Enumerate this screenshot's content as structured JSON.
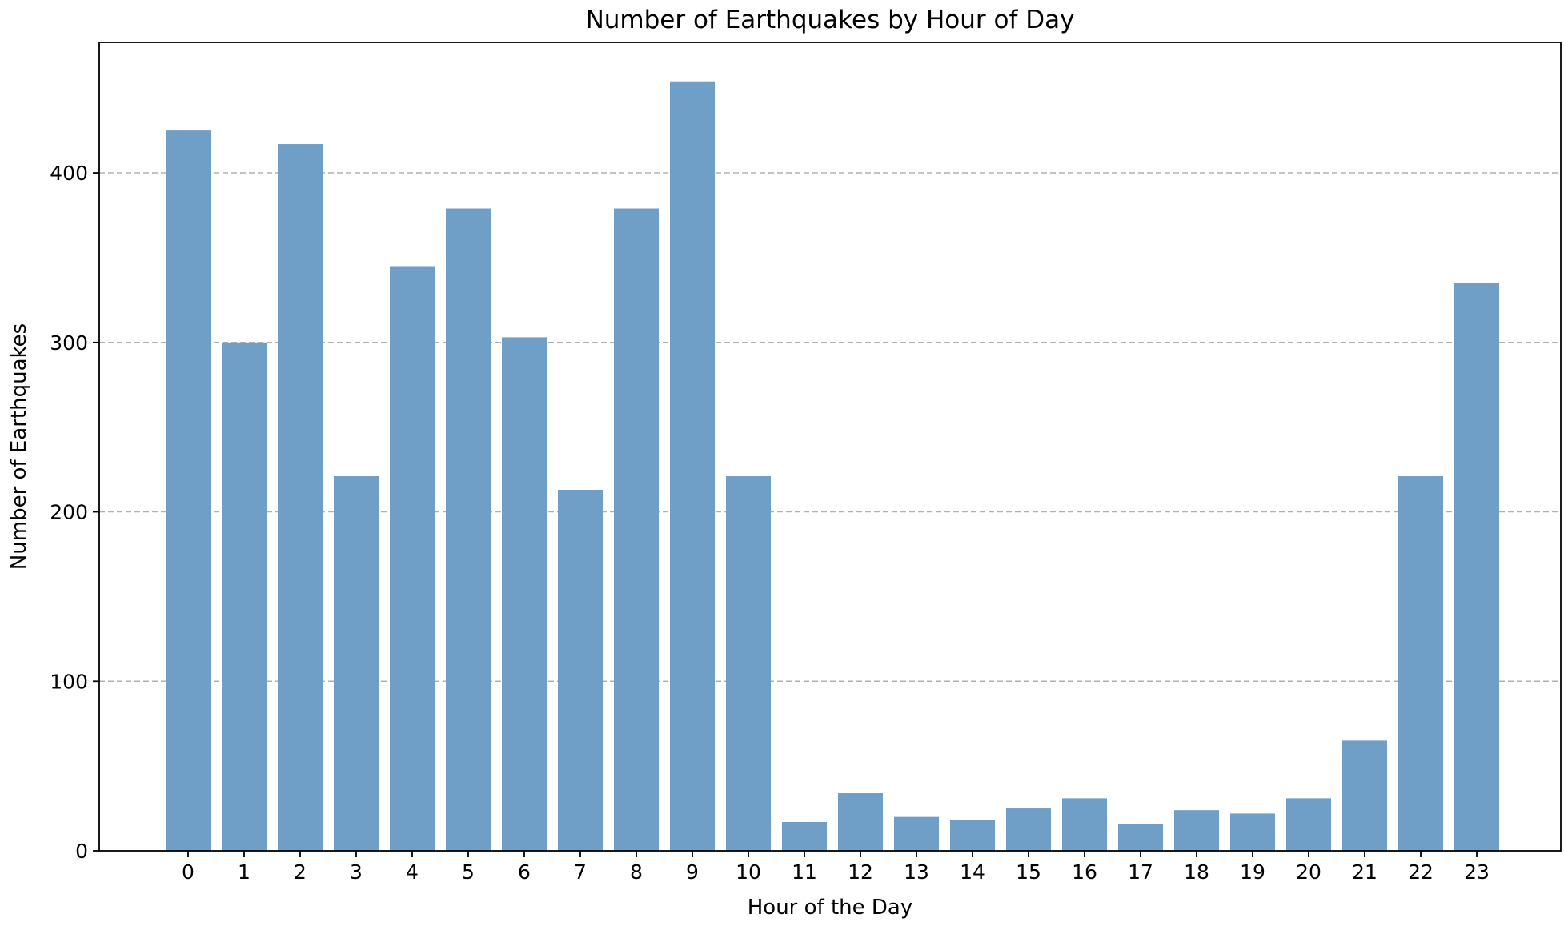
{
  "chart_data": {
    "type": "bar",
    "title": "Number of Earthquakes by Hour of Day",
    "xlabel": "Hour of the Day",
    "ylabel": "Number of Earthquakes",
    "categories": [
      "0",
      "1",
      "2",
      "3",
      "4",
      "5",
      "6",
      "7",
      "8",
      "9",
      "10",
      "11",
      "12",
      "13",
      "14",
      "15",
      "16",
      "17",
      "18",
      "19",
      "20",
      "21",
      "22",
      "23"
    ],
    "values": [
      425,
      300,
      417,
      221,
      345,
      379,
      303,
      213,
      379,
      454,
      221,
      17,
      34,
      20,
      18,
      25,
      31,
      16,
      24,
      22,
      31,
      65,
      221,
      335
    ],
    "ylim": [
      0,
      477
    ],
    "yticks": [
      0,
      100,
      200,
      300,
      400
    ],
    "grid": "y-dashed",
    "bar_color": "#6f9ec7",
    "grid_color": "#b0b0b0"
  }
}
